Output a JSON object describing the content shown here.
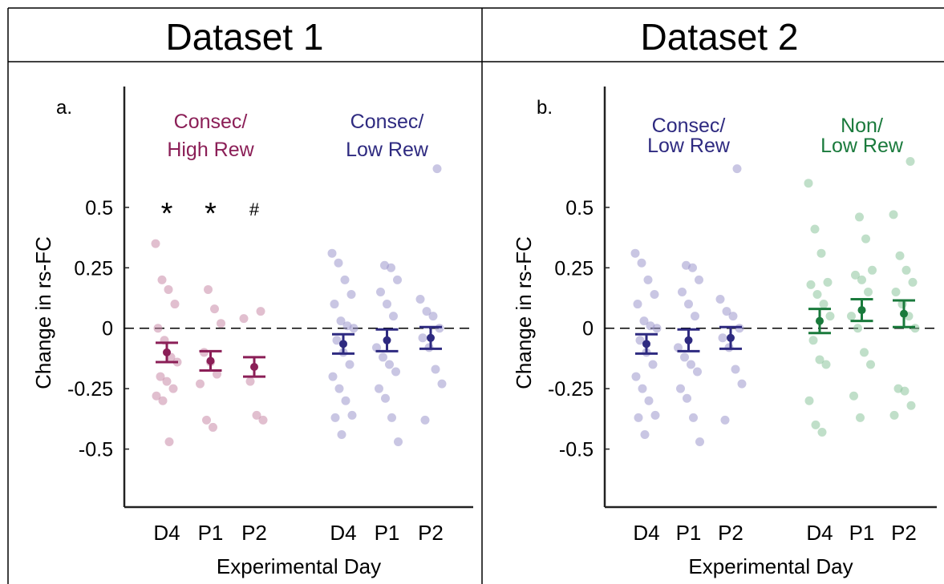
{
  "chart_data": [
    {
      "type": "dot-error",
      "title": "Dataset 1",
      "panel_label": "a.",
      "xlabel": "Experimental Day",
      "ylabel": "Change in rs-FC",
      "ylim": [
        -0.74,
        1.0
      ],
      "yticks": [
        0.5,
        0.25,
        0,
        -0.25,
        -0.5
      ],
      "zero_line": true,
      "groups": [
        {
          "name": [
            "Consec/",
            "High Rew"
          ],
          "color": "#8b1f57",
          "point_color": "#c98aa8",
          "categories": [
            "D4",
            "P1",
            "P2"
          ],
          "annotations": [
            "*",
            "*",
            "#"
          ],
          "means": [
            -0.1,
            -0.135,
            -0.16
          ],
          "errors": [
            0.04,
            0.04,
            0.04
          ],
          "points": [
            [
              0.35,
              0.2,
              0.16,
              0.1,
              0.0,
              -0.05,
              -0.12,
              -0.14,
              -0.2,
              -0.22,
              -0.25,
              -0.28,
              -0.3,
              -0.47
            ],
            [
              0.16,
              0.08,
              0.02,
              -0.1,
              -0.14,
              -0.19,
              -0.23,
              -0.38,
              -0.41
            ],
            [
              0.07,
              0.04,
              -0.22,
              -0.36,
              -0.38
            ]
          ]
        },
        {
          "name": [
            "Consec/",
            "Low Rew"
          ],
          "color": "#2e2a80",
          "point_color": "#9c98cc",
          "categories": [
            "D4",
            "P1",
            "P2"
          ],
          "means": [
            -0.065,
            -0.05,
            -0.04
          ],
          "errors": [
            0.04,
            0.045,
            0.045
          ],
          "points": [
            [
              0.31,
              0.27,
              0.2,
              0.14,
              0.1,
              0.03,
              0.01,
              0.0,
              -0.05,
              -0.1,
              -0.15,
              -0.2,
              -0.25,
              -0.3,
              -0.36,
              -0.37,
              -0.44
            ],
            [
              0.26,
              0.25,
              0.2,
              0.15,
              0.1,
              0.05,
              -0.08,
              -0.12,
              -0.15,
              -0.18,
              -0.25,
              -0.29,
              -0.37,
              -0.47
            ],
            [
              0.66,
              0.12,
              0.07,
              0.05,
              0.0,
              -0.04,
              -0.08,
              -0.17,
              -0.23,
              -0.38
            ]
          ]
        }
      ]
    },
    {
      "type": "dot-error",
      "title": "Dataset 2",
      "panel_label": "b.",
      "xlabel": "Experimental Day",
      "ylabel": "Change in rs-FC",
      "ylim": [
        -0.74,
        1.0
      ],
      "yticks": [
        0.5,
        0.25,
        0,
        -0.25,
        -0.5
      ],
      "zero_line": true,
      "groups": [
        {
          "name": [
            "Consec/",
            "Low Rew"
          ],
          "color": "#2e2a80",
          "point_color": "#9c98cc",
          "categories": [
            "D4",
            "P1",
            "P2"
          ],
          "means": [
            -0.065,
            -0.05,
            -0.04
          ],
          "errors": [
            0.04,
            0.045,
            0.045
          ],
          "points": [
            [
              0.31,
              0.27,
              0.2,
              0.14,
              0.1,
              0.03,
              0.01,
              0.0,
              -0.05,
              -0.1,
              -0.15,
              -0.2,
              -0.25,
              -0.3,
              -0.36,
              -0.37,
              -0.44
            ],
            [
              0.26,
              0.25,
              0.2,
              0.15,
              0.1,
              0.05,
              -0.08,
              -0.12,
              -0.15,
              -0.18,
              -0.25,
              -0.29,
              -0.37,
              -0.47
            ],
            [
              0.66,
              0.12,
              0.07,
              0.05,
              0.0,
              -0.04,
              -0.08,
              -0.17,
              -0.23,
              -0.38
            ]
          ]
        },
        {
          "name": [
            "Non/",
            "Low Rew"
          ],
          "color": "#1a7a3c",
          "point_color": "#8cc49c",
          "categories": [
            "D4",
            "P1",
            "P2"
          ],
          "means": [
            0.03,
            0.075,
            0.06
          ],
          "errors": [
            0.05,
            0.045,
            0.055
          ],
          "points": [
            [
              0.6,
              0.41,
              0.31,
              0.19,
              0.18,
              0.14,
              0.1,
              0.05,
              -0.05,
              -0.13,
              -0.15,
              -0.3,
              -0.4,
              -0.43
            ],
            [
              0.46,
              0.37,
              0.24,
              0.22,
              0.2,
              0.15,
              0.05,
              0.0,
              -0.1,
              -0.15,
              -0.28,
              -0.37
            ],
            [
              0.69,
              0.47,
              0.3,
              0.24,
              0.19,
              0.15,
              0.1,
              0.05,
              0.0,
              -0.25,
              -0.26,
              -0.32,
              -0.36
            ]
          ]
        }
      ]
    }
  ]
}
